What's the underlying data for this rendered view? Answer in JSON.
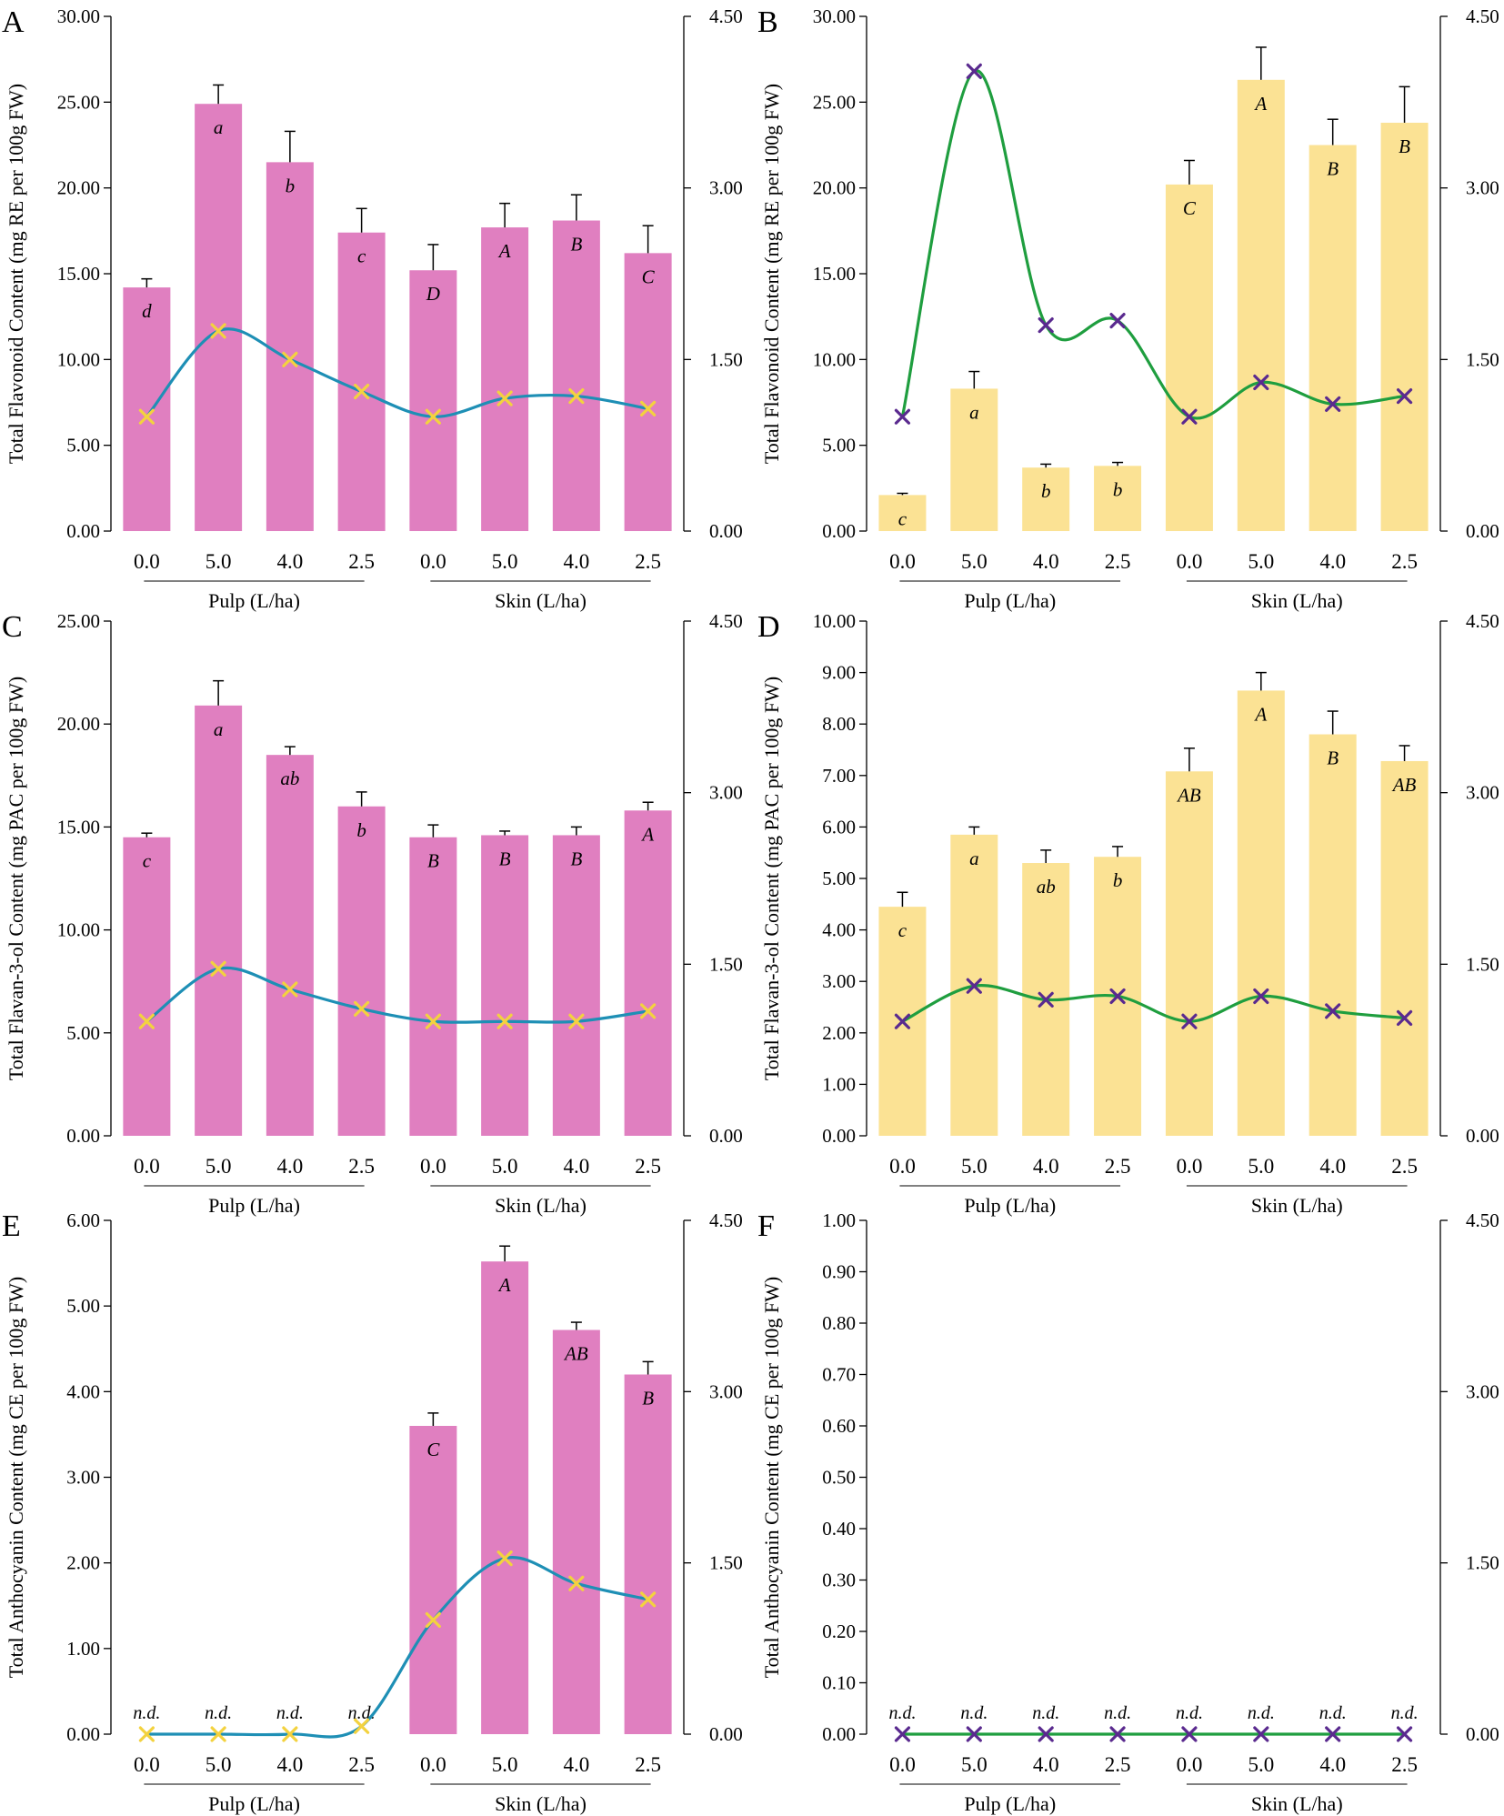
{
  "figure": {
    "panels": [
      "A",
      "B",
      "C",
      "D",
      "E",
      "F"
    ]
  },
  "chart_data": [
    {
      "panel": "A",
      "type": "bar",
      "ylabel": "Total Flavonoid Content (mg RE per 100g FW)",
      "ylim": [
        0,
        30
      ],
      "ytick_labels": [
        "0.00",
        "5.00",
        "10.00",
        "15.00",
        "20.00",
        "25.00",
        "30.00"
      ],
      "y2lim": [
        0,
        4.5
      ],
      "y2tick_labels": [
        "0.00",
        "1.50",
        "3.00",
        "4.50"
      ],
      "categories": [
        "0.0",
        "5.0",
        "4.0",
        "2.5",
        "0.0",
        "5.0",
        "4.0",
        "2.5"
      ],
      "groups": [
        "Pulp (L/ha)",
        "Skin (L/ha)"
      ],
      "values": [
        14.2,
        24.9,
        21.5,
        17.4,
        15.2,
        17.7,
        18.1,
        16.2
      ],
      "errors": [
        0.5,
        1.1,
        1.8,
        1.4,
        1.5,
        1.4,
        1.5,
        1.6
      ],
      "letters": [
        "d",
        "a",
        "b",
        "c",
        "D",
        "A",
        "B",
        "C"
      ],
      "line": [
        1.0,
        1.75,
        1.5,
        1.22,
        1.0,
        1.16,
        1.18,
        1.07
      ],
      "bar_color": "#e07fc0",
      "line_color": "#1e8fb5",
      "marker_color": "#f3d23f"
    },
    {
      "panel": "B",
      "type": "bar",
      "ylabel": "Total Flavonoid Content (mg RE per 100g FW)",
      "ylim": [
        0,
        30
      ],
      "ytick_labels": [
        "0.00",
        "5.00",
        "10.00",
        "15.00",
        "20.00",
        "25.00",
        "30.00"
      ],
      "y2lim": [
        0,
        4.5
      ],
      "y2tick_labels": [
        "0.00",
        "1.50",
        "3.00",
        "4.50"
      ],
      "categories": [
        "0.0",
        "5.0",
        "4.0",
        "2.5",
        "0.0",
        "5.0",
        "4.0",
        "2.5"
      ],
      "groups": [
        "Pulp (L/ha)",
        "Skin (L/ha)"
      ],
      "values": [
        2.1,
        8.3,
        3.7,
        3.8,
        20.2,
        26.3,
        22.5,
        23.8
      ],
      "errors": [
        0.1,
        1.0,
        0.2,
        0.2,
        1.4,
        1.9,
        1.5,
        2.1
      ],
      "letters": [
        "c",
        "a",
        "b",
        "b",
        "C",
        "A",
        "B",
        "B"
      ],
      "line": [
        1.0,
        4.02,
        1.8,
        1.84,
        1.0,
        1.3,
        1.11,
        1.18
      ],
      "bar_color": "#fbe294",
      "line_color": "#1f9e3f",
      "marker_color": "#5a2a8f"
    },
    {
      "panel": "C",
      "type": "bar",
      "ylabel": "Total Flavan-3-ol Content (mg PAC per 100g FW)",
      "ylim": [
        0,
        25
      ],
      "ytick_labels": [
        "0.00",
        "5.00",
        "10.00",
        "15.00",
        "20.00",
        "25.00"
      ],
      "y2lim": [
        0,
        4.5
      ],
      "y2tick_labels": [
        "0.00",
        "1.50",
        "3.00",
        "4.50"
      ],
      "categories": [
        "0.0",
        "5.0",
        "4.0",
        "2.5",
        "0.0",
        "5.0",
        "4.0",
        "2.5"
      ],
      "groups": [
        "Pulp (L/ha)",
        "Skin (L/ha)"
      ],
      "values": [
        14.5,
        20.9,
        18.5,
        16.0,
        14.5,
        14.6,
        14.6,
        15.8
      ],
      "errors": [
        0.2,
        1.2,
        0.4,
        0.7,
        0.6,
        0.2,
        0.4,
        0.4
      ],
      "letters": [
        "c",
        "a",
        "ab",
        "b",
        "B",
        "B",
        "B",
        "A"
      ],
      "line": [
        1.0,
        1.46,
        1.28,
        1.11,
        1.0,
        1.0,
        1.0,
        1.09
      ],
      "bar_color": "#e07fc0",
      "line_color": "#1e8fb5",
      "marker_color": "#f3d23f"
    },
    {
      "panel": "D",
      "type": "bar",
      "ylabel": "Total Flavan-3-ol Content (mg PAC per 100g FW)",
      "ylim": [
        0,
        10
      ],
      "ytick_labels": [
        "0.00",
        "1.00",
        "2.00",
        "3.00",
        "4.00",
        "5.00",
        "6.00",
        "7.00",
        "8.00",
        "9.00",
        "10.00"
      ],
      "y2lim": [
        0,
        4.5
      ],
      "y2tick_labels": [
        "0.00",
        "1.50",
        "3.00",
        "4.50"
      ],
      "categories": [
        "0.0",
        "5.0",
        "4.0",
        "2.5",
        "0.0",
        "5.0",
        "4.0",
        "2.5"
      ],
      "groups": [
        "Pulp (L/ha)",
        "Skin (L/ha)"
      ],
      "values": [
        4.45,
        5.85,
        5.3,
        5.42,
        7.08,
        8.65,
        7.8,
        7.28
      ],
      "errors": [
        0.28,
        0.15,
        0.25,
        0.2,
        0.45,
        0.35,
        0.45,
        0.3
      ],
      "letters": [
        "c",
        "a",
        "ab",
        "b",
        "AB",
        "A",
        "B",
        "AB"
      ],
      "line": [
        1.0,
        1.31,
        1.19,
        1.22,
        1.0,
        1.22,
        1.09,
        1.03
      ],
      "bar_color": "#fbe294",
      "line_color": "#1f9e3f",
      "marker_color": "#5a2a8f"
    },
    {
      "panel": "E",
      "type": "bar",
      "ylabel": "Total Anthocyanin Content (mg CE per 100g FW)",
      "ylim": [
        0,
        6
      ],
      "ytick_labels": [
        "0.00",
        "1.00",
        "2.00",
        "3.00",
        "4.00",
        "5.00",
        "6.00"
      ],
      "y2lim": [
        0,
        4.5
      ],
      "y2tick_labels": [
        "0.00",
        "1.50",
        "3.00",
        "4.50"
      ],
      "categories": [
        "0.0",
        "5.0",
        "4.0",
        "2.5",
        "0.0",
        "5.0",
        "4.0",
        "2.5"
      ],
      "groups": [
        "Pulp (L/ha)",
        "Skin (L/ha)"
      ],
      "values": [
        0,
        0,
        0,
        0,
        3.6,
        5.52,
        4.72,
        4.2
      ],
      "errors": [
        0,
        0,
        0,
        0,
        0.15,
        0.18,
        0.09,
        0.15
      ],
      "letters": [
        "n.d.",
        "n.d.",
        "n.d.",
        "n.d.",
        "C",
        "A",
        "AB",
        "B"
      ],
      "line": [
        0,
        0,
        0,
        0.07,
        1.0,
        1.54,
        1.32,
        1.18
      ],
      "bar_color": "#e07fc0",
      "line_color": "#1e8fb5",
      "marker_color": "#f3d23f"
    },
    {
      "panel": "F",
      "type": "bar",
      "ylabel": "Total Anthocyanin Content (mg CE per 100g FW)",
      "ylim": [
        0,
        1
      ],
      "ytick_labels": [
        "0.00",
        "0.10",
        "0.20",
        "0.30",
        "0.40",
        "0.50",
        "0.60",
        "0.70",
        "0.80",
        "0.90",
        "1.00"
      ],
      "y2lim": [
        0,
        4.5
      ],
      "y2tick_labels": [
        "0.00",
        "1.50",
        "3.00",
        "4.50"
      ],
      "categories": [
        "0.0",
        "5.0",
        "4.0",
        "2.5",
        "0.0",
        "5.0",
        "4.0",
        "2.5"
      ],
      "groups": [
        "Pulp (L/ha)",
        "Skin (L/ha)"
      ],
      "values": [
        0,
        0,
        0,
        0,
        0,
        0,
        0,
        0
      ],
      "errors": [
        0,
        0,
        0,
        0,
        0,
        0,
        0,
        0
      ],
      "letters": [
        "n.d.",
        "n.d.",
        "n.d.",
        "n.d.",
        "n.d.",
        "n.d.",
        "n.d.",
        "n.d."
      ],
      "line": [
        0,
        0,
        0,
        0,
        0,
        0,
        0,
        0
      ],
      "bar_color": "#fbe294",
      "line_color": "#1f9e3f",
      "marker_color": "#5a2a8f"
    }
  ]
}
